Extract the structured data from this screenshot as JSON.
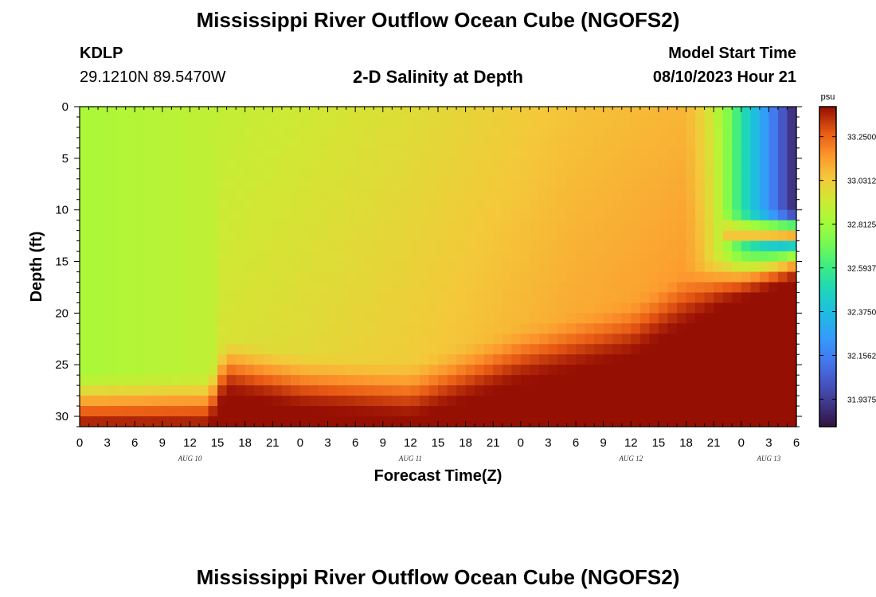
{
  "page": {
    "title": "Mississippi River Outflow Ocean Cube (NGOFS2)",
    "title_repeat": "Mississippi River Outflow Ocean Cube (NGOFS2)",
    "station_id": "KDLP",
    "station_coords": "29.1210N  89.5470W",
    "subtitle": "2-D Salinity at Depth",
    "model_start_label": "Model Start Time",
    "model_start_value": "08/10/2023 Hour 21"
  },
  "chart_data": {
    "type": "heatmap",
    "title": "2-D Salinity at Depth",
    "xlabel": "Forecast Time(Z)",
    "ylabel": "Depth (ft)",
    "x_tick_labels": [
      "0",
      "3",
      "6",
      "9",
      "12",
      "15",
      "18",
      "21",
      "0",
      "3",
      "6",
      "9",
      "12",
      "15",
      "18",
      "21",
      "0",
      "3",
      "6",
      "9",
      "12",
      "15",
      "18",
      "21",
      "0",
      "3",
      "6"
    ],
    "x_range_hours": [
      0,
      78
    ],
    "date_labels": [
      {
        "text": "AUG 10",
        "hour": 12
      },
      {
        "text": "AUG 11",
        "hour": 36
      },
      {
        "text": "AUG 12",
        "hour": 60
      },
      {
        "text": "AUG 13",
        "hour": 75
      }
    ],
    "y_ticks": [
      0,
      5,
      10,
      15,
      20,
      25,
      30
    ],
    "y_tick_labels": [
      "0",
      "5",
      "10",
      "15",
      "20",
      "25",
      "30"
    ],
    "ylim": [
      0,
      31
    ],
    "y_inverted": true,
    "colorbar": {
      "unit": "psu",
      "min": 31.8,
      "max": 33.4,
      "ticks": [
        33.25,
        33.03125,
        32.8125,
        32.59375,
        32.375,
        32.15625,
        31.9375
      ],
      "tick_labels": [
        "33.2500",
        "33.0312",
        "32.8125",
        "32.5937",
        "32.3750",
        "32.1562",
        "31.9375"
      ],
      "palette": "turbo"
    },
    "salinity_model": {
      "note": "approximate salinity field (psu) read from colors",
      "surface_values": [
        {
          "hour": 0,
          "value": 32.84
        },
        {
          "hour": 15,
          "value": 32.9
        },
        {
          "hour": 36,
          "value": 32.98
        },
        {
          "hour": 54,
          "value": 33.06
        },
        {
          "hour": 66,
          "value": 33.09
        },
        {
          "hour": 68,
          "value": 33.0
        },
        {
          "hour": 70,
          "value": 32.82
        },
        {
          "hour": 72,
          "value": 32.55
        },
        {
          "hour": 78,
          "value": 31.85
        }
      ],
      "bottom_layer_top_ft": [
        {
          "hour": 0,
          "value": 27.5
        },
        {
          "hour": 14,
          "value": 27.5
        },
        {
          "hour": 16,
          "value": 24.0
        },
        {
          "hour": 24,
          "value": 25.5
        },
        {
          "hour": 36,
          "value": 26.5
        },
        {
          "hour": 48,
          "value": 23.0
        },
        {
          "hour": 60,
          "value": 20.5
        },
        {
          "hour": 70,
          "value": 15.5
        },
        {
          "hour": 78,
          "value": 13.0
        }
      ],
      "bottom_value": 33.4,
      "fresh_lens_hours": [
        70,
        78
      ],
      "fresh_lens_bottom_ft": 10.0
    }
  }
}
